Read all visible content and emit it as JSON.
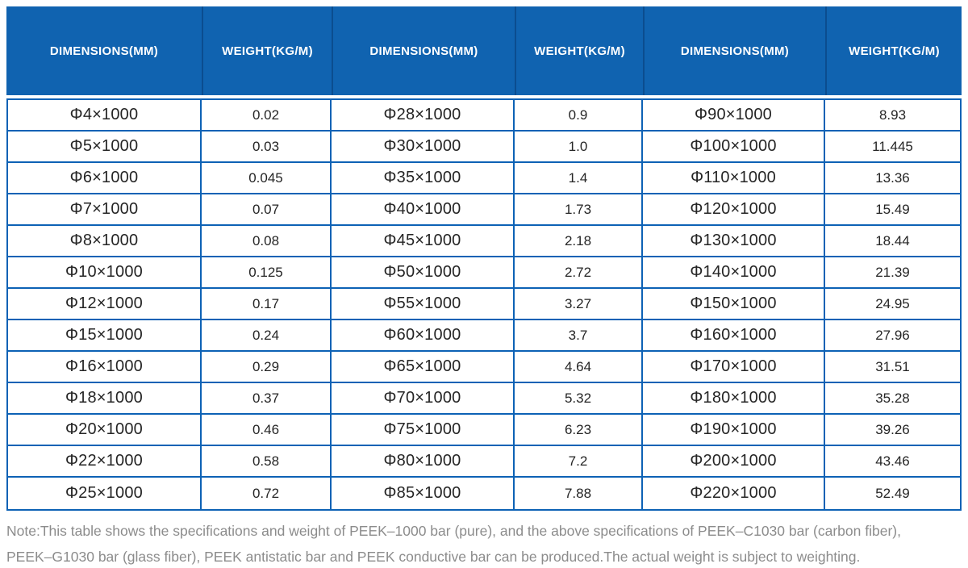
{
  "colors": {
    "header_bg": "#1063b0",
    "header_divider": "#0b4d8f",
    "header_text": "#ffffff",
    "body_border": "#0d62b5",
    "body_text": "#252525",
    "note_text": "#8c8c8c",
    "page_bg": "#ffffff"
  },
  "table": {
    "header": [
      "DIMENSIONS(MM)",
      "WEIGHT(KG/M)",
      "DIMENSIONS(MM)",
      "WEIGHT(KG/M)",
      "DIMENSIONS(MM)",
      "WEIGHT(KG/M)"
    ],
    "rows": [
      [
        "Φ4×1000",
        "0.02",
        "Φ28×1000",
        "0.9",
        "Φ90×1000",
        "8.93"
      ],
      [
        "Φ5×1000",
        "0.03",
        "Φ30×1000",
        "1.0",
        "Φ100×1000",
        "11.445"
      ],
      [
        "Φ6×1000",
        "0.045",
        "Φ35×1000",
        "1.4",
        "Φ110×1000",
        "13.36"
      ],
      [
        "Φ7×1000",
        "0.07",
        "Φ40×1000",
        "1.73",
        "Φ120×1000",
        "15.49"
      ],
      [
        "Φ8×1000",
        "0.08",
        "Φ45×1000",
        "2.18",
        "Φ130×1000",
        "18.44"
      ],
      [
        "Φ10×1000",
        "0.125",
        "Φ50×1000",
        "2.72",
        "Φ140×1000",
        "21.39"
      ],
      [
        "Φ12×1000",
        "0.17",
        "Φ55×1000",
        "3.27",
        "Φ150×1000",
        "24.95"
      ],
      [
        "Φ15×1000",
        "0.24",
        "Φ60×1000",
        "3.7",
        "Φ160×1000",
        "27.96"
      ],
      [
        "Φ16×1000",
        "0.29",
        "Φ65×1000",
        "4.64",
        "Φ170×1000",
        "31.51"
      ],
      [
        "Φ18×1000",
        "0.37",
        "Φ70×1000",
        "5.32",
        "Φ180×1000",
        "35.28"
      ],
      [
        "Φ20×1000",
        "0.46",
        "Φ75×1000",
        "6.23",
        "Φ190×1000",
        "39.26"
      ],
      [
        "Φ22×1000",
        "0.58",
        "Φ80×1000",
        "7.2",
        "Φ200×1000",
        "43.46"
      ],
      [
        "Φ25×1000",
        "0.72",
        "Φ85×1000",
        "7.88",
        "Φ220×1000",
        "52.49"
      ]
    ]
  },
  "note": {
    "line1": "Note:This table shows the specifications and weight of PEEK–1000 bar (pure), and the above specifications of PEEK–C1030 bar (carbon fiber),",
    "line2": "PEEK–G1030 bar (glass fiber), PEEK antistatic bar and PEEK conductive bar can be produced.The actual weight is subject to weighting."
  }
}
